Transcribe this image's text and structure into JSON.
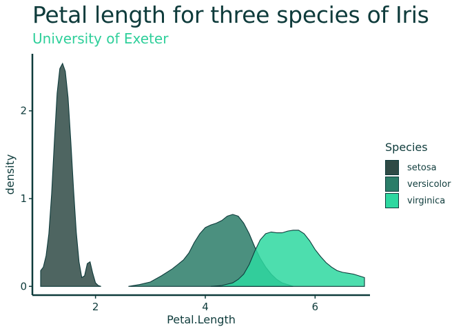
{
  "chart_data": {
    "type": "area",
    "title": "Petal length for three species of Iris",
    "subtitle": "University of Exeter",
    "xlabel": "Petal.Length",
    "ylabel": "density",
    "xlim": [
      0.85,
      7.0
    ],
    "ylim": [
      -0.1,
      2.65
    ],
    "x_ticks": [
      2,
      4,
      6
    ],
    "y_ticks": [
      0,
      1,
      2
    ],
    "legend_title": "Species",
    "legend_position": "right",
    "series": [
      {
        "name": "setosa",
        "color": "#2f4a45",
        "points": [
          [
            1.0,
            0.18
          ],
          [
            1.05,
            0.22
          ],
          [
            1.1,
            0.35
          ],
          [
            1.15,
            0.6
          ],
          [
            1.2,
            1.05
          ],
          [
            1.25,
            1.65
          ],
          [
            1.3,
            2.2
          ],
          [
            1.35,
            2.48
          ],
          [
            1.4,
            2.54
          ],
          [
            1.45,
            2.45
          ],
          [
            1.5,
            2.15
          ],
          [
            1.55,
            1.65
          ],
          [
            1.6,
            1.1
          ],
          [
            1.65,
            0.62
          ],
          [
            1.7,
            0.28
          ],
          [
            1.75,
            0.1
          ],
          [
            1.8,
            0.12
          ],
          [
            1.85,
            0.26
          ],
          [
            1.9,
            0.28
          ],
          [
            1.95,
            0.15
          ],
          [
            2.0,
            0.04
          ],
          [
            2.05,
            0.01
          ],
          [
            2.1,
            0.0
          ]
        ]
      },
      {
        "name": "versicolor",
        "color": "#2b7d68",
        "points": [
          [
            2.6,
            0.0
          ],
          [
            2.8,
            0.02
          ],
          [
            3.0,
            0.05
          ],
          [
            3.2,
            0.12
          ],
          [
            3.4,
            0.2
          ],
          [
            3.5,
            0.25
          ],
          [
            3.6,
            0.3
          ],
          [
            3.7,
            0.38
          ],
          [
            3.8,
            0.5
          ],
          [
            3.9,
            0.6
          ],
          [
            4.0,
            0.67
          ],
          [
            4.1,
            0.7
          ],
          [
            4.2,
            0.72
          ],
          [
            4.3,
            0.75
          ],
          [
            4.4,
            0.8
          ],
          [
            4.5,
            0.82
          ],
          [
            4.6,
            0.8
          ],
          [
            4.7,
            0.72
          ],
          [
            4.8,
            0.6
          ],
          [
            4.9,
            0.45
          ],
          [
            5.0,
            0.32
          ],
          [
            5.1,
            0.22
          ],
          [
            5.2,
            0.14
          ],
          [
            5.3,
            0.08
          ],
          [
            5.4,
            0.04
          ],
          [
            5.5,
            0.02
          ],
          [
            5.6,
            0.0
          ]
        ]
      },
      {
        "name": "virginica",
        "color": "#2ed8a0",
        "points": [
          [
            4.1,
            0.0
          ],
          [
            4.3,
            0.01
          ],
          [
            4.5,
            0.04
          ],
          [
            4.6,
            0.08
          ],
          [
            4.7,
            0.14
          ],
          [
            4.8,
            0.25
          ],
          [
            4.9,
            0.4
          ],
          [
            5.0,
            0.53
          ],
          [
            5.1,
            0.6
          ],
          [
            5.2,
            0.62
          ],
          [
            5.3,
            0.61
          ],
          [
            5.4,
            0.61
          ],
          [
            5.5,
            0.63
          ],
          [
            5.6,
            0.64
          ],
          [
            5.7,
            0.64
          ],
          [
            5.8,
            0.6
          ],
          [
            5.9,
            0.52
          ],
          [
            6.0,
            0.42
          ],
          [
            6.1,
            0.34
          ],
          [
            6.2,
            0.27
          ],
          [
            6.3,
            0.22
          ],
          [
            6.4,
            0.18
          ],
          [
            6.5,
            0.16
          ],
          [
            6.6,
            0.15
          ],
          [
            6.7,
            0.14
          ],
          [
            6.8,
            0.12
          ],
          [
            6.9,
            0.1
          ]
        ]
      }
    ]
  }
}
